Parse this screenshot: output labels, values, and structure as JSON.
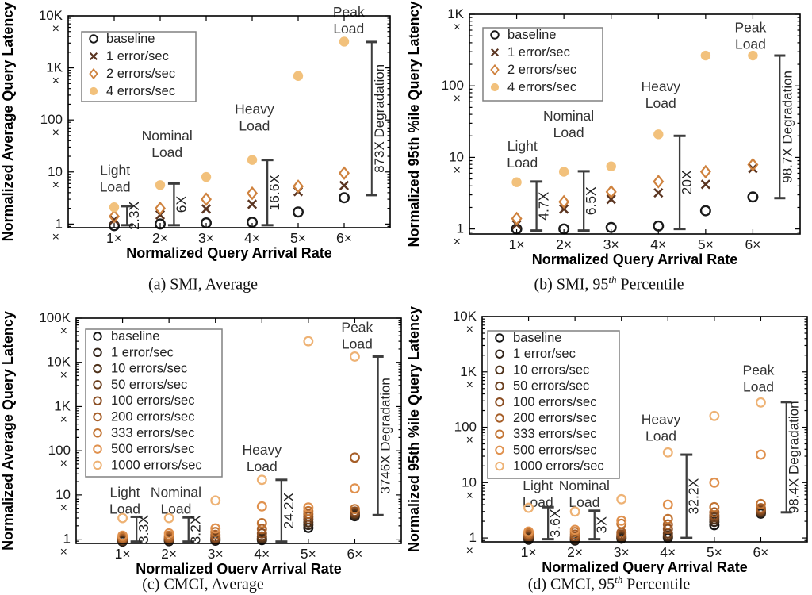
{
  "figure_background": "#ffffff",
  "chart_data": [
    {
      "type": "scatter",
      "caption": {
        "prefix": "(a)",
        "main": "SMI, Average",
        "sup": "",
        "tail": ""
      },
      "xlabel": "Normalized Query Arrival Rate",
      "ylabel": "Normalized Average Query Latency",
      "xlim": [
        0,
        7
      ],
      "ylim": [
        0.85,
        10000
      ],
      "xticks": [
        {
          "v": 1,
          "label": "1×"
        },
        {
          "v": 2,
          "label": "2×"
        },
        {
          "v": 3,
          "label": "3×"
        },
        {
          "v": 4,
          "label": "4×"
        },
        {
          "v": 5,
          "label": "5×"
        },
        {
          "v": 6,
          "label": "6×"
        }
      ],
      "yticks": [
        {
          "v": 1,
          "label": "1",
          "sub": "×"
        },
        {
          "v": 10,
          "label": "10",
          "sub": "×"
        },
        {
          "v": 100,
          "label": "100",
          "sub": "×"
        },
        {
          "v": 1000,
          "label": "1K",
          "sub": "×"
        },
        {
          "v": 10000,
          "label": "10K",
          "sub": "×"
        }
      ],
      "legend": [
        {
          "label": "baseline",
          "marker": "circle-open",
          "color": "#1a1a1a"
        },
        {
          "label": "1 error/sec",
          "marker": "x-cross",
          "color": "#5a3420"
        },
        {
          "label": "2 errors/sec",
          "marker": "diamond-open",
          "color": "#cf823e"
        },
        {
          "label": "4 errors/sec",
          "marker": "circle-filled",
          "color": "#f2c17c"
        }
      ],
      "series": [
        {
          "name": "baseline",
          "marker": "circle-open",
          "color": "#1a1a1a",
          "values": [
            0.93,
            1.0,
            1.05,
            1.08,
            1.7,
            3.2
          ]
        },
        {
          "name": "1 error/sec",
          "marker": "x-cross",
          "color": "#5a3420",
          "values": [
            1.2,
            1.5,
            1.95,
            2.4,
            4.2,
            5.5
          ]
        },
        {
          "name": "2 errors/sec",
          "marker": "diamond-open",
          "color": "#cf823e",
          "values": [
            1.4,
            2.0,
            3.0,
            3.9,
            5.3,
            9.5
          ]
        },
        {
          "name": "4 errors/sec",
          "marker": "circle-filled",
          "color": "#f2c17c",
          "values": [
            2.1,
            5.6,
            8.0,
            17,
            700,
            3200
          ]
        }
      ],
      "load_labels": [
        {
          "lines": [
            "Light",
            "Load"
          ],
          "x": 1.02,
          "v": 10.5
        },
        {
          "lines": [
            "Nominal",
            "Load"
          ],
          "x": 2.15,
          "v": 48
        },
        {
          "lines": [
            "Heavy",
            "Load"
          ],
          "x": 4.05,
          "v": 155
        },
        {
          "lines": [
            "Peak",
            "Load"
          ],
          "x": 6.1,
          "v": 11500
        }
      ],
      "bars": [
        {
          "label": "2.3X",
          "x": 1.28,
          "v1": 0.95,
          "v2": 2.2
        },
        {
          "label": "6X",
          "x": 2.3,
          "v1": 0.95,
          "v2": 6.0
        },
        {
          "label": "16.6X",
          "x": 4.33,
          "v1": 0.95,
          "v2": 17
        }
      ],
      "degradation_bar": {
        "label": "873X Degradation",
        "x": 6.6,
        "v1": 3.6,
        "v2": 3150
      }
    },
    {
      "type": "scatter",
      "caption": {
        "prefix": "(b)",
        "main": "SMI, 95",
        "sup": "th",
        "tail": " Percentile"
      },
      "xlabel": "Normalized Query Arrival Rate",
      "ylabel": "Normalized 95th %ile Query Latency",
      "xlim": [
        0,
        7
      ],
      "ylim": [
        0.85,
        1000
      ],
      "xticks": [
        {
          "v": 1,
          "label": "1×"
        },
        {
          "v": 2,
          "label": "2×"
        },
        {
          "v": 3,
          "label": "3×"
        },
        {
          "v": 4,
          "label": "4×"
        },
        {
          "v": 5,
          "label": "5×"
        },
        {
          "v": 6,
          "label": "6×"
        }
      ],
      "yticks": [
        {
          "v": 1,
          "label": "1",
          "sub": "×"
        },
        {
          "v": 10,
          "label": "10",
          "sub": "×"
        },
        {
          "v": 100,
          "label": "100",
          "sub": "×"
        },
        {
          "v": 1000,
          "label": "1K",
          "sub": "×"
        }
      ],
      "legend": [
        {
          "label": "baseline",
          "marker": "circle-open",
          "color": "#1a1a1a"
        },
        {
          "label": "1 error/sec",
          "marker": "x-cross",
          "color": "#5a3420"
        },
        {
          "label": "2 errors/sec",
          "marker": "diamond-open",
          "color": "#cf823e"
        },
        {
          "label": "4 errors/sec",
          "marker": "circle-filled",
          "color": "#f2c17c"
        }
      ],
      "series": [
        {
          "name": "baseline",
          "marker": "circle-open",
          "color": "#1a1a1a",
          "values": [
            1.0,
            1.0,
            1.05,
            1.1,
            1.8,
            2.8
          ]
        },
        {
          "name": "1 error/sec",
          "marker": "x-cross",
          "color": "#5a3420",
          "values": [
            1.15,
            1.9,
            2.6,
            3.2,
            4.2,
            7.0
          ]
        },
        {
          "name": "2 errors/sec",
          "marker": "diamond-open",
          "color": "#cf823e",
          "values": [
            1.4,
            2.4,
            3.3,
            4.6,
            6.3,
            7.9
          ]
        },
        {
          "name": "4 errors/sec",
          "marker": "circle-filled",
          "color": "#f2c17c",
          "values": [
            4.5,
            6.3,
            7.5,
            21,
            265,
            265
          ]
        }
      ],
      "load_labels": [
        {
          "lines": [
            "Light",
            "Load"
          ],
          "x": 1.12,
          "v": 14
        },
        {
          "lines": [
            "Nominal",
            "Load"
          ],
          "x": 2.1,
          "v": 37
        },
        {
          "lines": [
            "Heavy",
            "Load"
          ],
          "x": 4.05,
          "v": 95
        },
        {
          "lines": [
            "Peak",
            "Load"
          ],
          "x": 5.95,
          "v": 640
        }
      ],
      "bars": [
        {
          "label": "4.7X",
          "x": 1.42,
          "v1": 0.95,
          "v2": 4.6
        },
        {
          "label": "6.5X",
          "x": 2.42,
          "v1": 0.95,
          "v2": 6.4
        },
        {
          "label": "20X",
          "x": 4.45,
          "v1": 1.0,
          "v2": 20
        }
      ],
      "degradation_bar": {
        "label": "98.7X Degradation",
        "x": 6.57,
        "v1": 2.7,
        "v2": 265
      }
    },
    {
      "type": "scatter",
      "caption": {
        "prefix": "(c)",
        "main": "CMCI, Average",
        "sup": "",
        "tail": ""
      },
      "xlabel": "Normalized Query Arrival Rate",
      "ylabel": "Normalized Average Query Latency",
      "xlim": [
        0,
        7
      ],
      "ylim": [
        0.8,
        100000
      ],
      "xticks": [
        {
          "v": 1,
          "label": "1×"
        },
        {
          "v": 2,
          "label": "2×"
        },
        {
          "v": 3,
          "label": "3×"
        },
        {
          "v": 4,
          "label": "4×"
        },
        {
          "v": 5,
          "label": "5×"
        },
        {
          "v": 6,
          "label": "6×"
        }
      ],
      "yticks": [
        {
          "v": 1,
          "label": "1",
          "sub": "×"
        },
        {
          "v": 10,
          "label": "10",
          "sub": "×"
        },
        {
          "v": 100,
          "label": "100",
          "sub": "×"
        },
        {
          "v": 1000,
          "label": "1K",
          "sub": "×"
        },
        {
          "v": 10000,
          "label": "10K",
          "sub": "×"
        },
        {
          "v": 100000,
          "label": "100K",
          "sub": "×"
        }
      ],
      "legend": [
        {
          "label": "baseline",
          "marker": "circle-open",
          "color": "#141414"
        },
        {
          "label": "1 error/sec",
          "marker": "circle-open",
          "color": "#32241a"
        },
        {
          "label": "10 errors/sec",
          "marker": "circle-open",
          "color": "#4d3018"
        },
        {
          "label": "50 errors/sec",
          "marker": "circle-open",
          "color": "#6b3f1e"
        },
        {
          "label": "100 errors/sec",
          "marker": "circle-open",
          "color": "#8a4d22"
        },
        {
          "label": "200 errors/sec",
          "marker": "circle-open",
          "color": "#a65e28"
        },
        {
          "label": "333 errors/sec",
          "marker": "circle-open",
          "color": "#c27433"
        },
        {
          "label": "500 errors/sec",
          "marker": "circle-open",
          "color": "#e0914e"
        },
        {
          "label": "1000 errors/sec",
          "marker": "circle-open",
          "color": "#eeb274"
        }
      ],
      "series": [
        {
          "name": "baseline",
          "marker": "circle-open",
          "color": "#141414",
          "values": [
            0.88,
            0.9,
            0.92,
            0.95,
            1.8,
            3.3
          ]
        },
        {
          "name": "1 error/sec",
          "marker": "circle-open",
          "color": "#32241a",
          "values": [
            0.9,
            0.93,
            0.96,
            1.0,
            2.1,
            3.5
          ]
        },
        {
          "name": "10 errors/sec",
          "marker": "circle-open",
          "color": "#4d3018",
          "values": [
            0.93,
            0.97,
            1.0,
            1.05,
            2.4,
            3.7
          ]
        },
        {
          "name": "50 errors/sec",
          "marker": "circle-open",
          "color": "#6b3f1e",
          "values": [
            0.97,
            1.0,
            1.05,
            1.15,
            2.8,
            3.9
          ]
        },
        {
          "name": "100 errors/sec",
          "marker": "circle-open",
          "color": "#8a4d22",
          "values": [
            1.0,
            1.05,
            1.1,
            1.35,
            3.2,
            4.2
          ]
        },
        {
          "name": "200 errors/sec",
          "marker": "circle-open",
          "color": "#a65e28",
          "values": [
            1.05,
            1.1,
            1.25,
            1.7,
            3.7,
            70
          ]
        },
        {
          "name": "333 errors/sec",
          "marker": "circle-open",
          "color": "#c27433",
          "values": [
            1.1,
            1.2,
            1.45,
            2.3,
            4.3,
            4.8
          ]
        },
        {
          "name": "500 errors/sec",
          "marker": "circle-open",
          "color": "#e0914e",
          "values": [
            1.2,
            1.35,
            1.75,
            5.5,
            5.2,
            14
          ]
        },
        {
          "name": "1000 errors/sec",
          "marker": "circle-open",
          "color": "#eeb274",
          "values": [
            3.0,
            3.0,
            7.5,
            22,
            30000,
            13500
          ]
        }
      ],
      "load_labels": [
        {
          "lines": [
            "Light",
            "Load"
          ],
          "x": 1.05,
          "v": 11
        },
        {
          "lines": [
            "Nominal",
            "Load"
          ],
          "x": 2.15,
          "v": 11
        },
        {
          "lines": [
            "Heavy",
            "Load"
          ],
          "x": 4.0,
          "v": 100
        },
        {
          "lines": [
            "Peak",
            "Load"
          ],
          "x": 6.05,
          "v": 60000
        }
      ],
      "bars": [
        {
          "label": "3.3X",
          "x": 1.3,
          "v1": 0.88,
          "v2": 3.2
        },
        {
          "label": "3.2X",
          "x": 2.42,
          "v1": 0.88,
          "v2": 3.1
        },
        {
          "label": "24.2X",
          "x": 4.42,
          "v1": 0.88,
          "v2": 22
        }
      ],
      "degradation_bar": {
        "label": "3746X Degradation",
        "x": 6.5,
        "v1": 3.5,
        "v2": 13500
      }
    },
    {
      "type": "scatter",
      "caption": {
        "prefix": "(d)",
        "main": "CMCI, 95",
        "sup": "th",
        "tail": " Percentile"
      },
      "xlabel": "Normalized Query Arrival Rate",
      "ylabel": "Normalized 95th %ile Query Latency",
      "xlim": [
        0,
        7
      ],
      "ylim": [
        0.85,
        10000
      ],
      "xticks": [
        {
          "v": 1,
          "label": "1×"
        },
        {
          "v": 2,
          "label": "2×"
        },
        {
          "v": 3,
          "label": "3×"
        },
        {
          "v": 4,
          "label": "4×"
        },
        {
          "v": 5,
          "label": "5×"
        },
        {
          "v": 6,
          "label": "6×"
        }
      ],
      "yticks": [
        {
          "v": 1,
          "label": "1",
          "sub": "×"
        },
        {
          "v": 10,
          "label": "10",
          "sub": "×"
        },
        {
          "v": 100,
          "label": "100",
          "sub": "×"
        },
        {
          "v": 1000,
          "label": "1K",
          "sub": "×"
        },
        {
          "v": 10000,
          "label": "10K",
          "sub": "×"
        }
      ],
      "legend": [
        {
          "label": "baseline",
          "marker": "circle-open",
          "color": "#141414"
        },
        {
          "label": "1 error/sec",
          "marker": "circle-open",
          "color": "#32241a"
        },
        {
          "label": "10 errors/sec",
          "marker": "circle-open",
          "color": "#4d3018"
        },
        {
          "label": "50 errors/sec",
          "marker": "circle-open",
          "color": "#6b3f1e"
        },
        {
          "label": "100 errors/sec",
          "marker": "circle-open",
          "color": "#8a4d22"
        },
        {
          "label": "200 errors/sec",
          "marker": "circle-open",
          "color": "#a65e28"
        },
        {
          "label": "333 errors/sec",
          "marker": "circle-open",
          "color": "#c27433"
        },
        {
          "label": "500 errors/sec",
          "marker": "circle-open",
          "color": "#e0914e"
        },
        {
          "label": "1000 errors/sec",
          "marker": "circle-open",
          "color": "#eeb274"
        }
      ],
      "series": [
        {
          "name": "baseline",
          "marker": "circle-open",
          "color": "#141414",
          "values": [
            0.93,
            0.9,
            0.97,
            1.0,
            1.7,
            2.75
          ]
        },
        {
          "name": "1 error/sec",
          "marker": "circle-open",
          "color": "#32241a",
          "values": [
            0.96,
            0.93,
            1.0,
            1.05,
            1.95,
            2.85
          ]
        },
        {
          "name": "10 errors/sec",
          "marker": "circle-open",
          "color": "#4d3018",
          "values": [
            1.0,
            0.97,
            1.03,
            1.1,
            2.15,
            2.95
          ]
        },
        {
          "name": "50 errors/sec",
          "marker": "circle-open",
          "color": "#6b3f1e",
          "values": [
            1.05,
            1.0,
            1.08,
            1.2,
            2.35,
            3.1
          ]
        },
        {
          "name": "100 errors/sec",
          "marker": "circle-open",
          "color": "#8a4d22",
          "values": [
            1.1,
            1.05,
            1.15,
            1.45,
            2.55,
            3.25
          ]
        },
        {
          "name": "200 errors/sec",
          "marker": "circle-open",
          "color": "#a65e28",
          "values": [
            1.15,
            1.15,
            1.25,
            1.75,
            2.9,
            3.45
          ]
        },
        {
          "name": "333 errors/sec",
          "marker": "circle-open",
          "color": "#c27433",
          "values": [
            1.22,
            1.28,
            1.8,
            2.2,
            3.6,
            4.1
          ]
        },
        {
          "name": "500 errors/sec",
          "marker": "circle-open",
          "color": "#e0914e",
          "values": [
            1.3,
            1.4,
            2.05,
            4.0,
            10,
            32
          ]
        },
        {
          "name": "1000 errors/sec",
          "marker": "circle-open",
          "color": "#eeb274",
          "values": [
            3.5,
            3.0,
            5.0,
            35,
            160,
            280
          ]
        }
      ],
      "load_labels": [
        {
          "lines": [
            "Light",
            "Load"
          ],
          "x": 1.2,
          "v": 8.5
        },
        {
          "lines": [
            "Nominal",
            "Load"
          ],
          "x": 2.2,
          "v": 8.5
        },
        {
          "lines": [
            "Heavy",
            "Load"
          ],
          "x": 3.85,
          "v": 135
        },
        {
          "lines": [
            "Peak",
            "Load"
          ],
          "x": 5.95,
          "v": 1050
        }
      ],
      "bars": [
        {
          "label": "3.6X",
          "x": 1.42,
          "v1": 0.95,
          "v2": 3.6
        },
        {
          "label": "3X",
          "x": 2.42,
          "v1": 0.95,
          "v2": 3.1
        },
        {
          "label": "32.2X",
          "x": 4.4,
          "v1": 1.0,
          "v2": 32
        }
      ],
      "degradation_bar": {
        "label": "98.4X Degradation",
        "x": 6.55,
        "v1": 2.9,
        "v2": 285
      }
    }
  ]
}
